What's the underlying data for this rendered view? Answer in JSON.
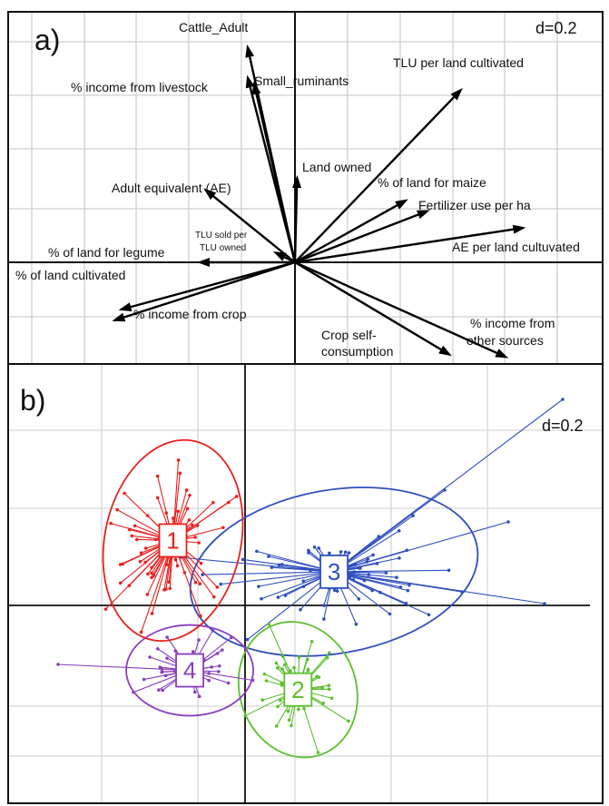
{
  "chart_data": [
    {
      "type": "biplot",
      "panel_label": "a)",
      "scale_label": "d=0.2",
      "grid": true,
      "vectors": [
        {
          "label": "Cattle_Adult",
          "x": -0.22,
          "y": 1.0
        },
        {
          "label": "Small_ruminants",
          "x": -0.19,
          "y": 0.83
        },
        {
          "label": "% income from livestock",
          "x": -0.22,
          "y": 0.86
        },
        {
          "label": "TLU per land cultivated",
          "x": 0.77,
          "y": 0.8
        },
        {
          "label": "Land owned",
          "x": 0.01,
          "y": 0.4
        },
        {
          "label": "Adult equivalent (AE)",
          "x": -0.42,
          "y": 0.34
        },
        {
          "label": "% of land for maize",
          "x": 0.52,
          "y": 0.29
        },
        {
          "label": "Fertilizer use per ha",
          "x": 0.62,
          "y": 0.24
        },
        {
          "label": "TLU sold per TLU owned",
          "x": -0.1,
          "y": 0.05
        },
        {
          "label": "AE per land cultuvated",
          "x": 1.06,
          "y": 0.16
        },
        {
          "label": "% of land for legume",
          "x": -0.45,
          "y": 0.0
        },
        {
          "label": "% of land cultivated",
          "x": -0.81,
          "y": -0.22
        },
        {
          "label": "% income from crop",
          "x": -0.84,
          "y": -0.27
        },
        {
          "label": "Crop self-consumption",
          "x": 0.72,
          "y": -0.43
        },
        {
          "label": "% income from other sources",
          "x": 0.98,
          "y": -0.44
        }
      ]
    },
    {
      "type": "scatter",
      "panel_label": "b)",
      "scale_label": "d=0.2",
      "grid": true,
      "clusters": [
        {
          "label": "1",
          "color": "#e8211e",
          "center": [
            -0.3,
            0.27
          ]
        },
        {
          "label": "2",
          "color": "#5cbf2e",
          "center": [
            0.22,
            -0.35
          ]
        },
        {
          "label": "3",
          "color": "#2f4fbf",
          "center": [
            0.37,
            0.14
          ]
        },
        {
          "label": "4",
          "color": "#8a3fbf",
          "center": [
            -0.23,
            -0.27
          ]
        }
      ]
    }
  ]
}
